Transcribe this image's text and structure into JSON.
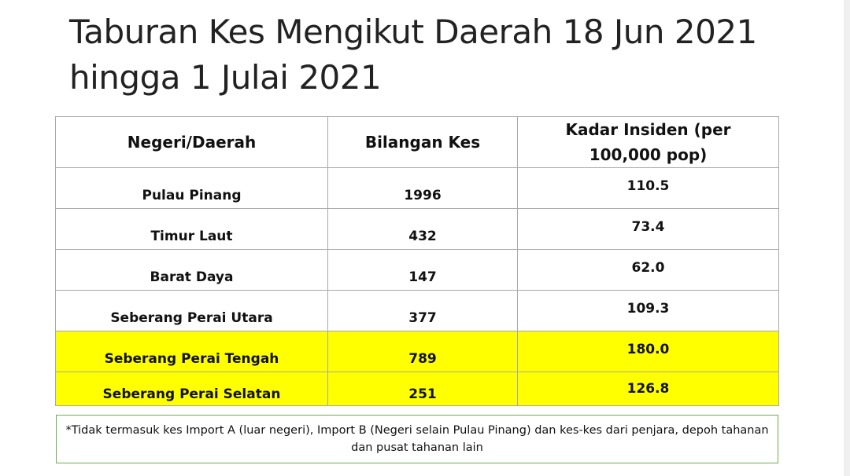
{
  "title": "Taburan Kes Mengikut Daerah 18 Jun 2021 hingga 1 Julai 2021",
  "table": {
    "headers": [
      "Negeri/Daerah",
      "Bilangan Kes",
      "Kadar Insiden (per 100,000 pop)"
    ],
    "rows": [
      {
        "region": "Pulau Pinang",
        "cases": "1996",
        "incidence": "110.5",
        "highlight": false
      },
      {
        "region": "Timur Laut",
        "cases": "432",
        "incidence": "73.4",
        "highlight": false
      },
      {
        "region": "Barat Daya",
        "cases": "147",
        "incidence": "62.0",
        "highlight": false
      },
      {
        "region": "Seberang Perai Utara",
        "cases": "377",
        "incidence": "109.3",
        "highlight": false
      },
      {
        "region": "Seberang Perai Tengah",
        "cases": "789",
        "incidence": "180.0",
        "highlight": true
      },
      {
        "region": "Seberang Perai Selatan",
        "cases": "251",
        "incidence": "126.8",
        "highlight": true
      }
    ],
    "highlight_color": "#ffff00"
  },
  "footnote": "*Tidak termasuk kes Import A (luar negeri), Import B (Negeri selain Pulau Pinang) dan kes-kes dari penjara, depoh tahanan dan pusat tahanan lain"
}
